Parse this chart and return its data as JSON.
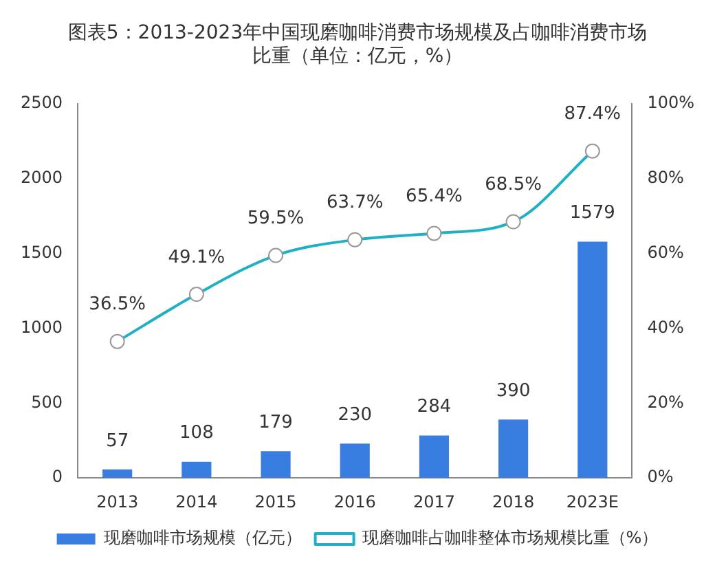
{
  "chart_data": {
    "type": "bar",
    "title": "图表5：2013-2023年中国现磨咖啡消费市场规模及占咖啡消费市场比重（单位：亿元，%）",
    "categories": [
      "2013",
      "2014",
      "2015",
      "2016",
      "2017",
      "2018",
      "2023E"
    ],
    "series": [
      {
        "name": "现磨咖啡市场规模（亿元）",
        "color": "#3a7de0",
        "values": [
          57,
          108,
          179,
          230,
          284,
          390,
          1579
        ],
        "value_labels": [
          "57",
          "108",
          "179",
          "230",
          "284",
          "390",
          "1579"
        ]
      },
      {
        "name": "现磨咖啡占咖啡整体市场规模比重（%）",
        "type": "line",
        "axis": "y2",
        "color": "#1fb0c8",
        "marker": "circle",
        "values": [
          36.5,
          49.1,
          59.5,
          63.7,
          65.4,
          68.5,
          87.4
        ],
        "value_labels": [
          "36.5%",
          "49.1%",
          "59.5%",
          "63.7%",
          "65.4%",
          "68.5%",
          "87.4%"
        ]
      }
    ],
    "ylim": [
      0,
      2500
    ],
    "yticks": [
      0,
      500,
      1000,
      1500,
      2000,
      2500
    ],
    "y2lim": [
      0,
      100
    ],
    "y2ticks": [
      {
        "value": 0,
        "label": "0%"
      },
      {
        "value": 20,
        "label": "20%"
      },
      {
        "value": 40,
        "label": "40%"
      },
      {
        "value": 60,
        "label": "60%"
      },
      {
        "value": 80,
        "label": "80%"
      },
      {
        "value": 100,
        "label": "100%"
      }
    ],
    "grid": false,
    "legend": "bottom"
  }
}
